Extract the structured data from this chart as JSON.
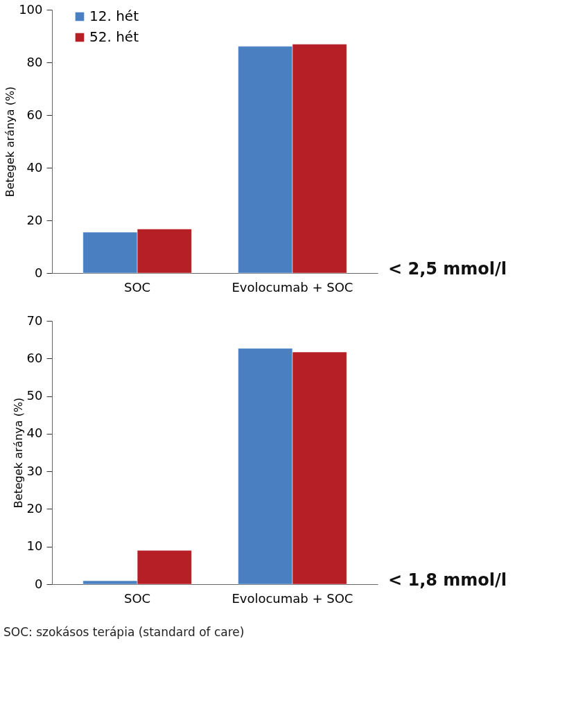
{
  "chart_data": [
    {
      "type": "bar",
      "categories": [
        "SOC",
        "Evolocumab + SOC"
      ],
      "ylabel": "Betegek aránya (%)",
      "ylim": [
        0,
        100
      ],
      "yticks": [
        0,
        20,
        40,
        60,
        80,
        100
      ],
      "grid": false,
      "legend": "top left",
      "series": [
        {
          "name": "12. hét",
          "color": "#4a7fc1",
          "values": [
            15.5,
            86.1
          ]
        },
        {
          "name": "52. hét",
          "color": "#b61f26",
          "values": [
            16.7,
            86.9
          ]
        }
      ],
      "annotations": [
        "< 2,5 mmol/l"
      ]
    },
    {
      "type": "bar",
      "categories": [
        "SOC",
        "Evolocumab + SOC"
      ],
      "ylabel": "Betegek aránya (%)",
      "ylim": [
        0,
        70
      ],
      "yticks": [
        0,
        10,
        20,
        30,
        40,
        50,
        60,
        70
      ],
      "grid": false,
      "legend": "top left",
      "series": [
        {
          "name": "12. hét",
          "color": "#4a7fc1",
          "values": [
            0.9,
            62.7
          ]
        },
        {
          "name": "52. hét",
          "color": "#b61f26",
          "values": [
            9.0,
            61.7
          ]
        }
      ],
      "annotations": [
        "< 1,8 mmol/l",
        "SOC: szokásos terápia (standard of care)"
      ]
    }
  ]
}
